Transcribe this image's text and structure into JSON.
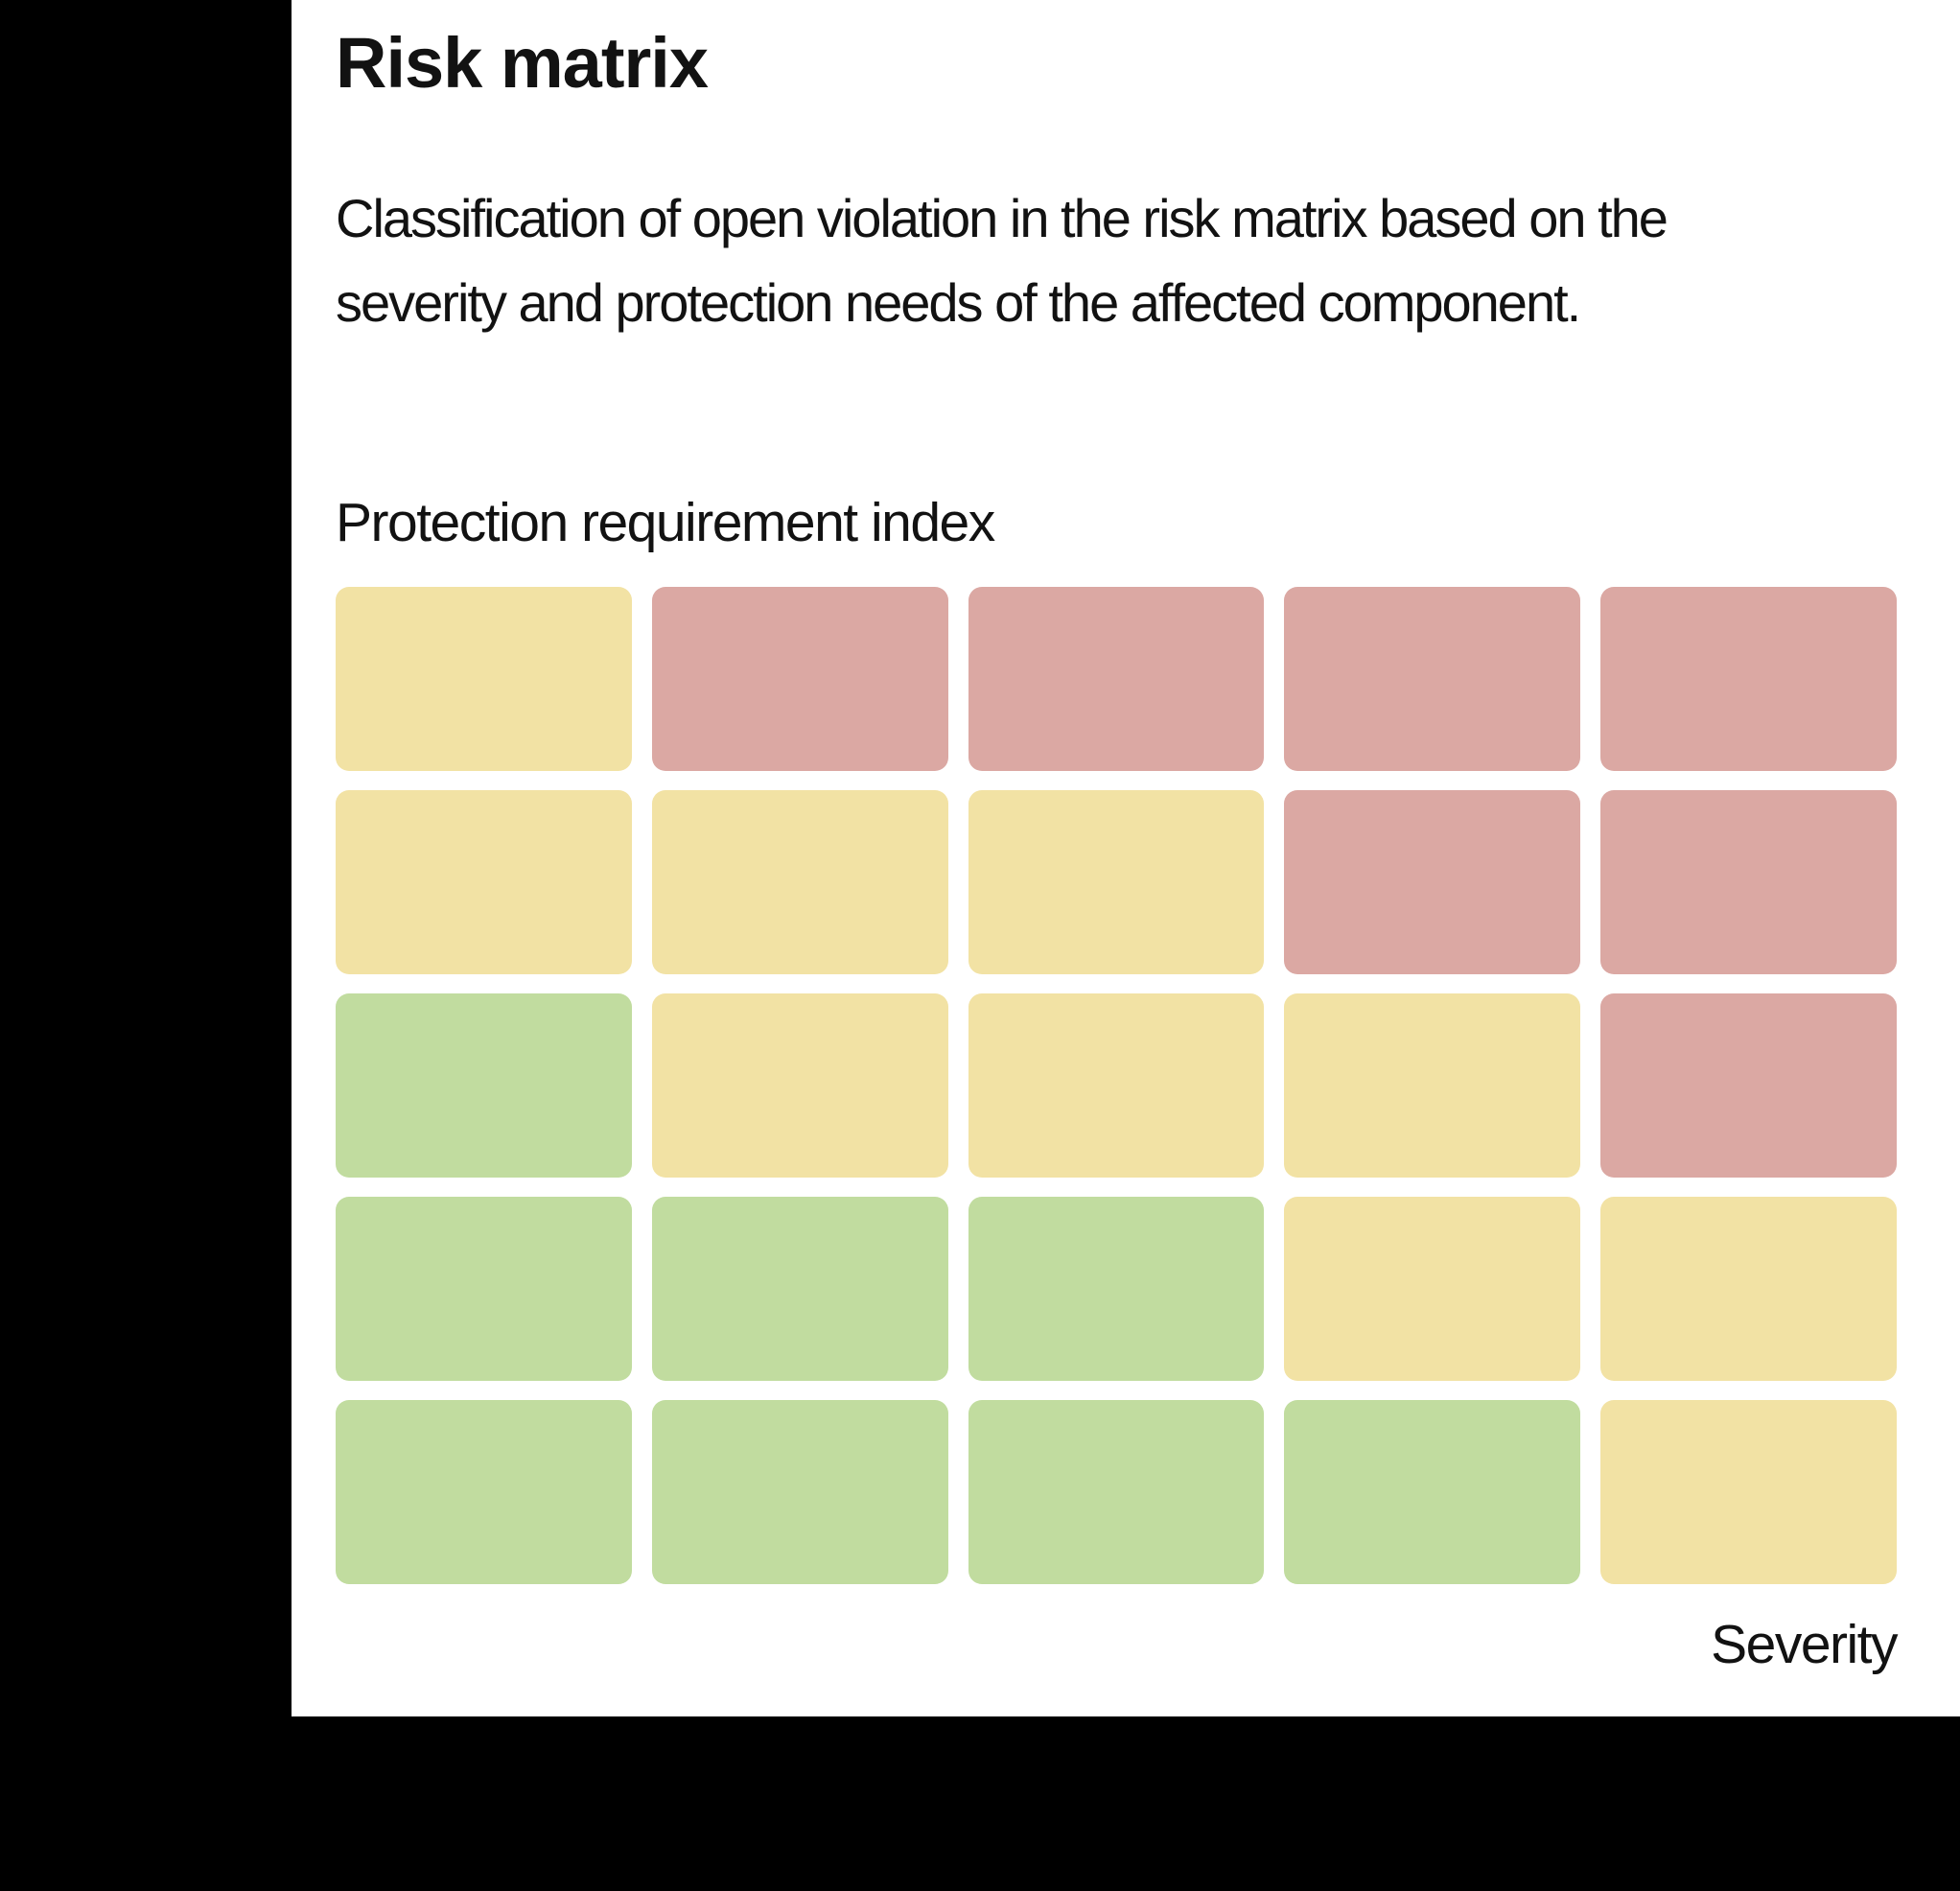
{
  "page": {
    "backdrop_color": "#000000",
    "panel_color": "#ffffff",
    "text_color": "#121212"
  },
  "chart_data": {
    "type": "heatmap",
    "title": "Risk matrix",
    "description": "Classification of open violation in the risk matrix based on the\nseverity and protection needs of the affected component.",
    "ylabel": "Protection requirement index",
    "xlabel": "Severity",
    "rows": 5,
    "cols": 5,
    "grid_on": false,
    "legend": "none",
    "cells_by_row_top_to_bottom": [
      [
        "yellow",
        "red",
        "red",
        "red",
        "red"
      ],
      [
        "yellow",
        "yellow",
        "yellow",
        "red",
        "red"
      ],
      [
        "green",
        "yellow",
        "yellow",
        "yellow",
        "red"
      ],
      [
        "green",
        "green",
        "green",
        "yellow",
        "yellow"
      ],
      [
        "green",
        "green",
        "green",
        "green",
        "yellow"
      ]
    ],
    "colors": {
      "green": "#C1DC9F",
      "yellow": "#F2E2A4",
      "red": "#DBA8A3"
    }
  }
}
